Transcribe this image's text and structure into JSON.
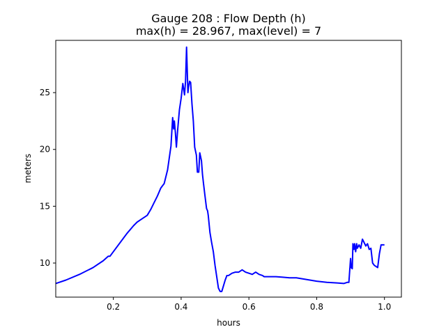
{
  "chart_data": {
    "type": "line",
    "title": "Gauge 208 : Flow Depth (h)",
    "subtitle": "max(h) =  28.967,    max(level) = 7",
    "xlabel": "hours",
    "ylabel": "meters",
    "xlim": [
      0.03,
      1.05
    ],
    "ylim": [
      7.0,
      29.6
    ],
    "xticks": [
      0.2,
      0.4,
      0.6,
      0.8,
      1.0
    ],
    "xtick_labels": [
      "0.2",
      "0.4",
      "0.6",
      "0.8",
      "1.0"
    ],
    "yticks": [
      10,
      15,
      20,
      25
    ],
    "ytick_labels": [
      "10",
      "15",
      "20",
      "25"
    ],
    "grid": false,
    "line_color": "#0000ff",
    "series": [
      {
        "x": [
          0.03,
          0.06,
          0.1,
          0.14,
          0.17,
          0.185,
          0.19,
          0.2,
          0.22,
          0.24,
          0.26,
          0.27,
          0.28,
          0.3,
          0.31,
          0.32,
          0.33,
          0.34,
          0.35,
          0.36,
          0.37,
          0.375,
          0.378,
          0.38,
          0.383,
          0.386,
          0.39,
          0.395,
          0.4,
          0.405,
          0.41,
          0.413,
          0.416,
          0.418,
          0.42,
          0.422,
          0.425,
          0.428,
          0.432,
          0.436,
          0.44,
          0.445,
          0.448,
          0.452,
          0.455,
          0.46,
          0.463,
          0.466,
          0.47,
          0.475,
          0.478,
          0.48,
          0.485,
          0.49,
          0.495,
          0.5,
          0.51,
          0.515,
          0.52,
          0.525,
          0.53,
          0.535,
          0.54,
          0.55,
          0.56,
          0.57,
          0.58,
          0.59,
          0.6,
          0.61,
          0.62,
          0.63,
          0.64,
          0.645,
          0.65,
          0.66,
          0.68,
          0.7,
          0.72,
          0.74,
          0.76,
          0.8,
          0.83,
          0.86,
          0.88,
          0.89,
          0.895,
          0.9,
          0.902,
          0.905,
          0.907,
          0.91,
          0.912,
          0.915,
          0.918,
          0.92,
          0.925,
          0.93,
          0.935,
          0.94,
          0.945,
          0.95,
          0.955,
          0.96,
          0.965,
          0.97,
          0.98,
          0.985,
          0.99,
          1.0
        ],
        "y": [
          8.2,
          8.5,
          9.0,
          9.6,
          10.2,
          10.6,
          10.6,
          11.0,
          11.8,
          12.6,
          13.3,
          13.6,
          13.8,
          14.2,
          14.7,
          15.3,
          15.9,
          16.6,
          17.0,
          18.2,
          20.3,
          22.8,
          21.8,
          22.5,
          21.5,
          20.2,
          21.8,
          23.5,
          24.5,
          25.8,
          24.8,
          26.0,
          29.0,
          27.0,
          25.0,
          25.5,
          26.0,
          25.9,
          24.0,
          22.5,
          20.2,
          19.5,
          18.0,
          18.0,
          19.7,
          19.0,
          17.8,
          17.0,
          16.0,
          14.8,
          14.6,
          14.2,
          12.7,
          11.8,
          11.0,
          9.8,
          7.8,
          7.5,
          7.5,
          8.0,
          8.5,
          8.9,
          8.9,
          9.1,
          9.2,
          9.2,
          9.4,
          9.2,
          9.1,
          9.0,
          9.2,
          9.0,
          8.9,
          8.8,
          8.8,
          8.8,
          8.8,
          8.75,
          8.7,
          8.7,
          8.6,
          8.4,
          8.3,
          8.25,
          8.2,
          8.3,
          8.3,
          10.4,
          9.6,
          9.5,
          11.7,
          11.2,
          11.7,
          11.0,
          11.7,
          11.3,
          11.6,
          11.3,
          12.1,
          11.8,
          11.5,
          11.7,
          11.2,
          11.3,
          10.0,
          9.8,
          9.6,
          10.8,
          11.6,
          11.6
        ]
      }
    ]
  }
}
